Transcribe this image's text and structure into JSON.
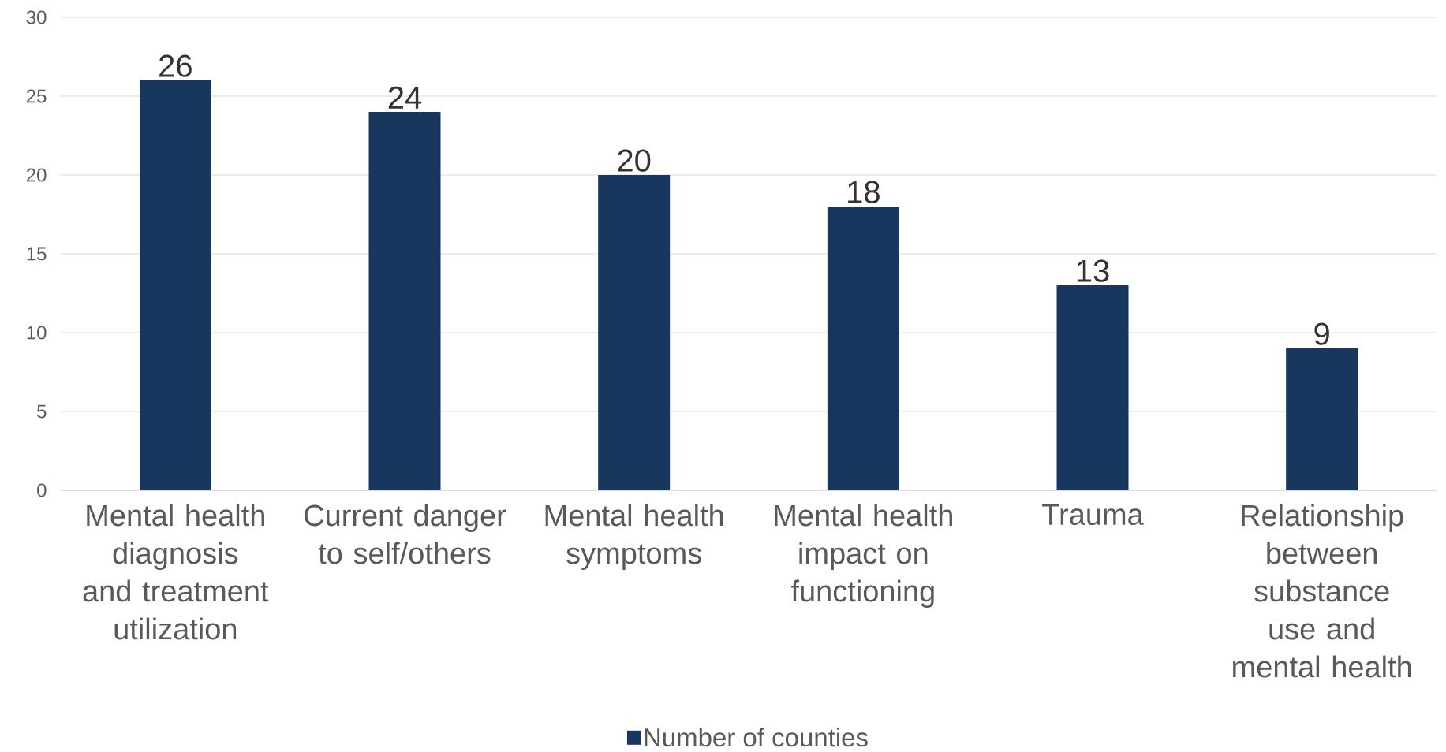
{
  "chart_data": {
    "type": "bar",
    "categories": [
      "Mental health diagnosis and treatment utilization",
      "Current danger to self/others",
      "Mental health symptoms",
      "Mental health impact on functioning",
      "Trauma",
      "Relationship between substance use and mental health"
    ],
    "series": [
      {
        "name": "Number of counties",
        "color": "#17375e",
        "values": [
          26,
          24,
          20,
          18,
          13,
          9
        ]
      }
    ],
    "ylim": [
      0,
      30
    ],
    "yticks": [
      0,
      5,
      10,
      15,
      20,
      25,
      30
    ],
    "grid": "y",
    "legend": "bottom",
    "data_labels": true
  }
}
